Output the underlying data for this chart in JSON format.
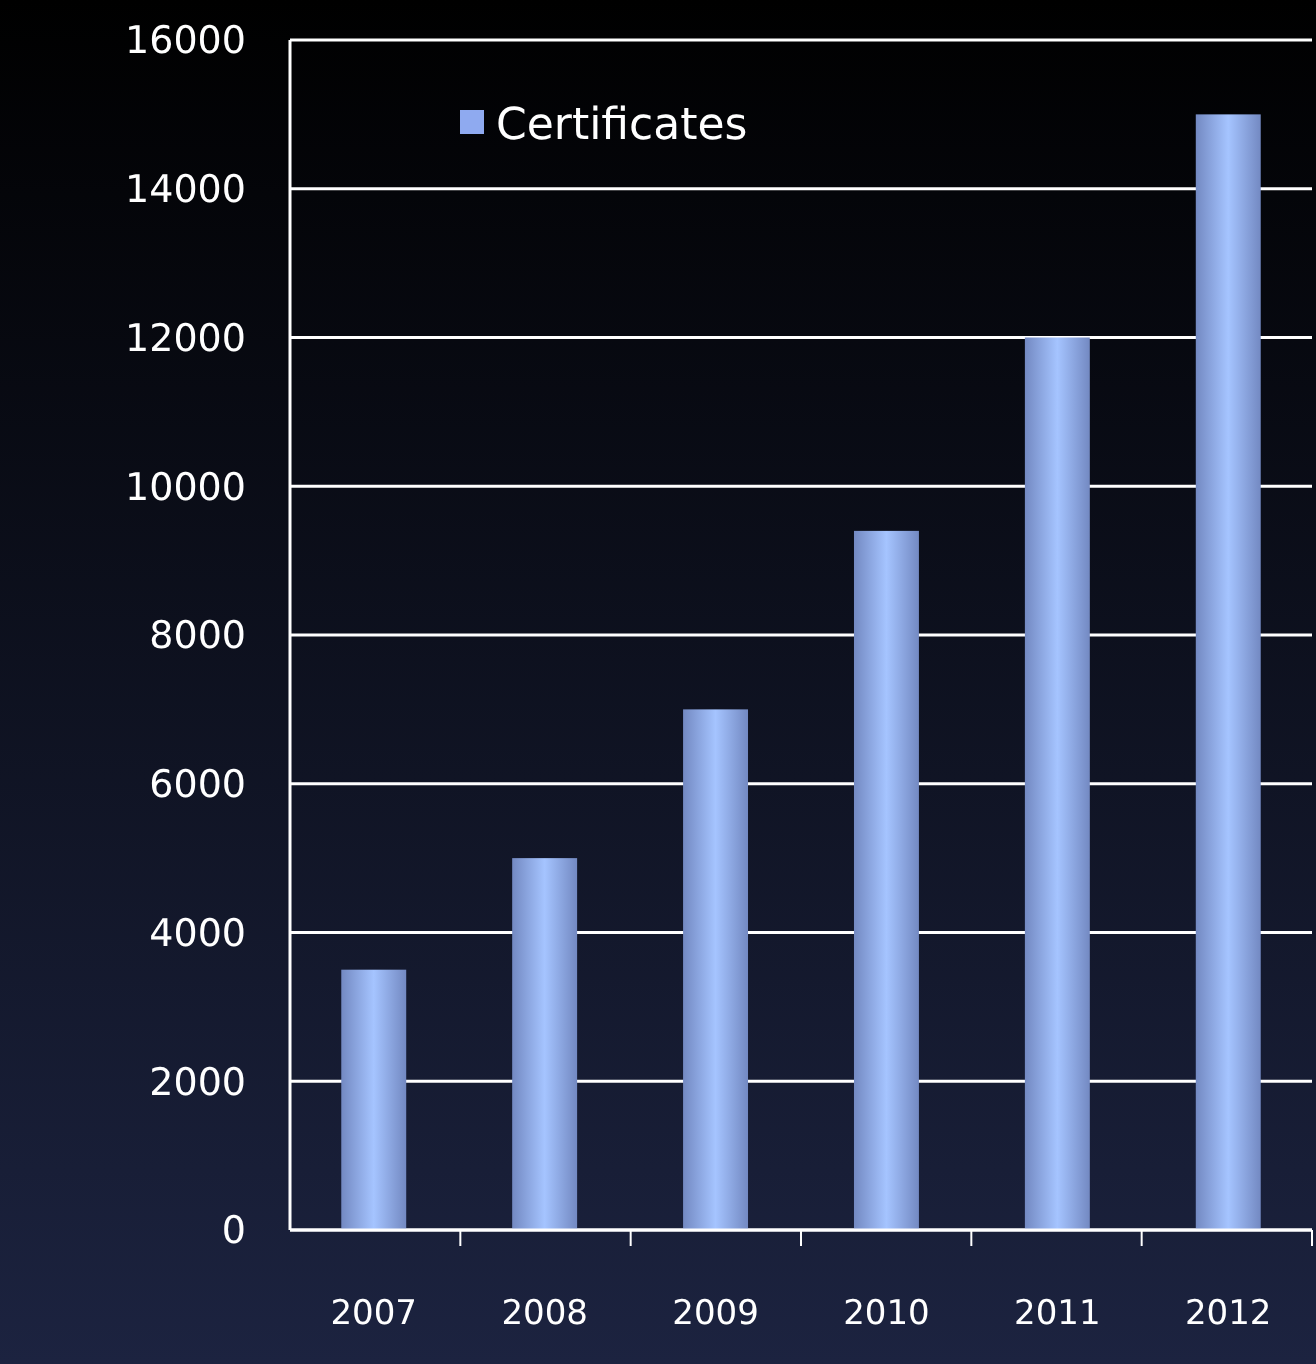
{
  "chart_data": {
    "type": "bar",
    "categories": [
      "2007",
      "2008",
      "2009",
      "2010",
      "2011",
      "2012"
    ],
    "series": [
      {
        "name": "Certificates",
        "color": "#8faaf0",
        "values": [
          3500,
          5000,
          7000,
          9400,
          12000,
          15000
        ]
      }
    ],
    "ylim": [
      0,
      16000
    ],
    "yticks": [
      0,
      2000,
      4000,
      6000,
      8000,
      10000,
      12000,
      14000,
      16000
    ],
    "grid": "y",
    "legend": "top left"
  }
}
